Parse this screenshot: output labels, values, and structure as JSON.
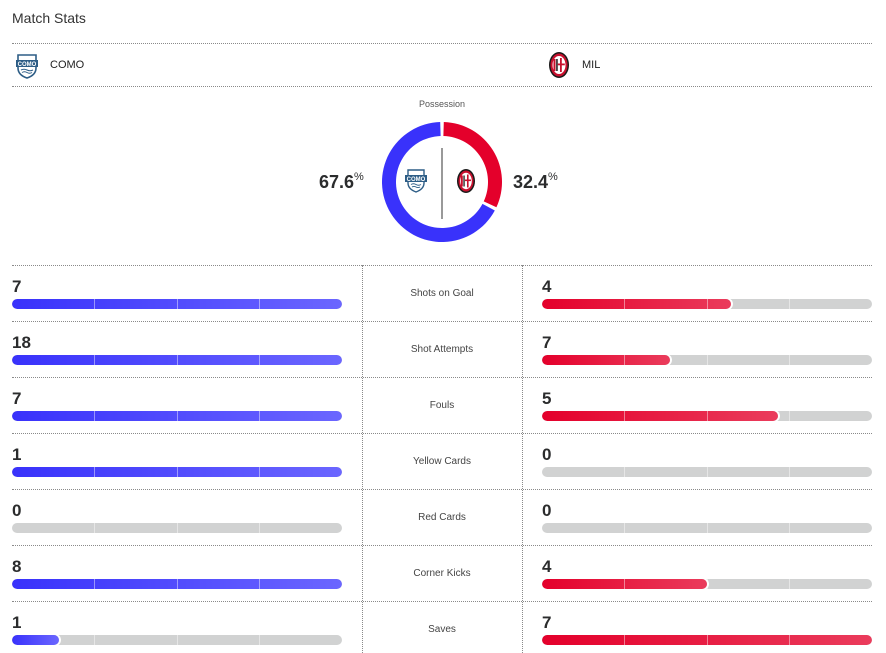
{
  "header": {
    "title": "Match Stats"
  },
  "teams": {
    "home": {
      "abbr": "COMO",
      "logo_icon": "como-crest-icon",
      "color": "#3932fb",
      "crest_year": "1907"
    },
    "away": {
      "abbr": "MIL",
      "logo_icon": "ac-milan-crest-icon",
      "color": "#e4002b"
    }
  },
  "possession": {
    "label": "Possession",
    "home_value": "67.6",
    "away_value": "32.4",
    "home_pct": 67.6,
    "away_pct": 32.4,
    "unit": "%"
  },
  "stats": [
    {
      "name": "Shots on Goal",
      "home": 7,
      "away": 4
    },
    {
      "name": "Shot Attempts",
      "home": 18,
      "away": 7
    },
    {
      "name": "Fouls",
      "home": 7,
      "away": 5
    },
    {
      "name": "Yellow Cards",
      "home": 1,
      "away": 0
    },
    {
      "name": "Red Cards",
      "home": 0,
      "away": 0
    },
    {
      "name": "Corner Kicks",
      "home": 8,
      "away": 4
    },
    {
      "name": "Saves",
      "home": 1,
      "away": 7
    }
  ],
  "colors": {
    "home": "#3932fb",
    "away": "#e4002b",
    "track": "#d1d2d2"
  }
}
